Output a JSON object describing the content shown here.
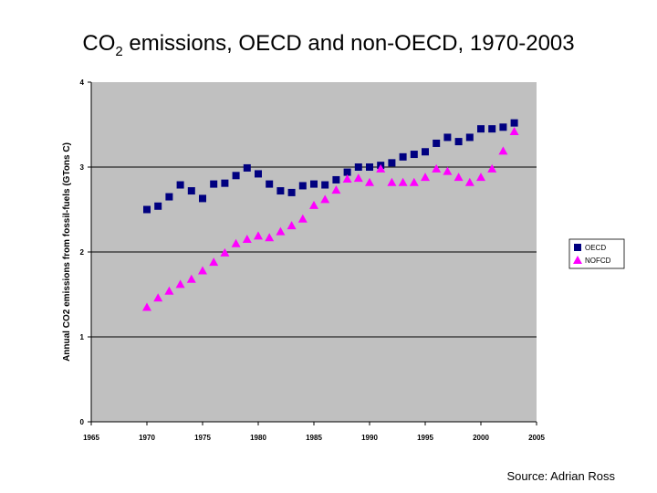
{
  "slide": {
    "title_main": "CO",
    "title_sub": "2",
    "title_rest": " emissions, OECD and non-OECD, 1970-2003",
    "source": "Source: Adrian Ross"
  },
  "colors": {
    "plot_bg": "#c0c0c0",
    "oecd": "#000080",
    "non_oecd": "#ff00ff",
    "grid": "#000000"
  },
  "chart_data": {
    "type": "scatter",
    "title": "CO2 emissions, OECD and non-OECD, 1970-2003",
    "ylabel": "Annual CO2 emissions from fossil-fuels (GTons C)",
    "xlabel": "",
    "xlim": [
      1965,
      2005
    ],
    "ylim": [
      0,
      4
    ],
    "xticks": [
      "1965",
      "1970",
      "1975",
      "1980",
      "1985",
      "1990",
      "1995",
      "2000",
      "2005"
    ],
    "yticks": [
      "0",
      "1",
      "2",
      "3",
      "4"
    ],
    "grid": "horizontal",
    "legend_position": "right",
    "series": [
      {
        "name": "OECD",
        "marker": "square",
        "x": [
          1970,
          1971,
          1972,
          1973,
          1974,
          1975,
          1976,
          1977,
          1978,
          1979,
          1980,
          1981,
          1982,
          1983,
          1984,
          1985,
          1986,
          1987,
          1988,
          1989,
          1990,
          1991,
          1992,
          1993,
          1994,
          1995,
          1996,
          1997,
          1998,
          1999,
          2000,
          2001,
          2002,
          2003
        ],
        "y": [
          2.5,
          2.54,
          2.65,
          2.79,
          2.72,
          2.63,
          2.8,
          2.81,
          2.9,
          2.99,
          2.92,
          2.8,
          2.72,
          2.7,
          2.78,
          2.8,
          2.79,
          2.85,
          2.94,
          3.0,
          3.0,
          3.02,
          3.05,
          3.12,
          3.15,
          3.18,
          3.28,
          3.35,
          3.3,
          3.35,
          3.45,
          3.45,
          3.47,
          3.52
        ]
      },
      {
        "name": "NOFCD",
        "marker": "triangle",
        "x": [
          1970,
          1971,
          1972,
          1973,
          1974,
          1975,
          1976,
          1977,
          1978,
          1979,
          1980,
          1981,
          1982,
          1983,
          1984,
          1985,
          1986,
          1987,
          1988,
          1989,
          1990,
          1991,
          1992,
          1993,
          1994,
          1995,
          1996,
          1997,
          1998,
          1999,
          2000,
          2001,
          2002,
          2003
        ],
        "y": [
          1.35,
          1.46,
          1.54,
          1.62,
          1.68,
          1.78,
          1.88,
          1.99,
          2.1,
          2.15,
          2.19,
          2.17,
          2.24,
          2.31,
          2.39,
          2.55,
          2.62,
          2.73,
          2.86,
          2.87,
          2.82,
          2.98,
          2.82,
          2.82,
          2.82,
          2.88,
          2.98,
          2.95,
          2.88,
          2.82,
          2.88,
          2.98,
          3.19,
          3.42
        ]
      }
    ]
  }
}
